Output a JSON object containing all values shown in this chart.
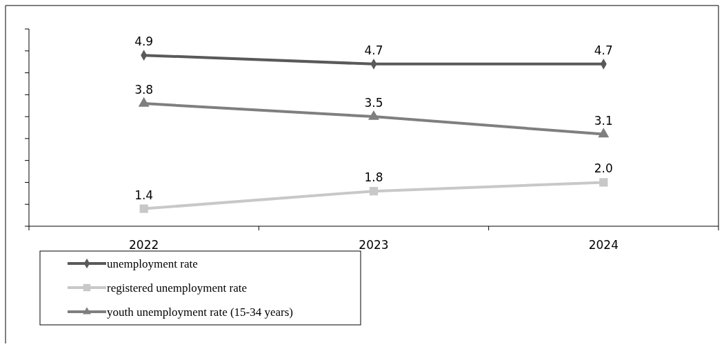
{
  "chart_data": {
    "type": "line",
    "categories": [
      "2022",
      "2023",
      "2024"
    ],
    "series": [
      {
        "name": "unemployment rate",
        "color": "#595959",
        "marker": "diamond",
        "values": [
          4.9,
          4.7,
          4.7
        ]
      },
      {
        "name": "registered unemployment rate",
        "color": "#c8c8c8",
        "marker": "square",
        "values": [
          1.4,
          1.8,
          2.0
        ],
        "value_labels": [
          "1.4",
          "1.8",
          "2.0"
        ]
      },
      {
        "name": "youth unemployment rate (15-34 years)",
        "color": "#7f7f7f",
        "marker": "triangle",
        "values": [
          3.8,
          3.5,
          3.1
        ]
      }
    ],
    "ylim": [
      1,
      5.5
    ],
    "yticks": [
      {
        "value": 1,
        "label": null
      },
      {
        "value": 1.5,
        "label": null
      },
      {
        "value": 2,
        "label": null
      },
      {
        "value": 2.5,
        "label": null
      },
      {
        "value": 3,
        "label": null
      },
      {
        "value": 3.5,
        "label": null
      },
      {
        "value": 4,
        "label": null
      },
      {
        "value": 4.5,
        "label": null
      },
      {
        "value": 5,
        "label": null
      },
      {
        "value": 5.5,
        "label": null
      }
    ],
    "data_labels": true,
    "legend": "bottom left",
    "grid": false,
    "line_style": "solid"
  }
}
